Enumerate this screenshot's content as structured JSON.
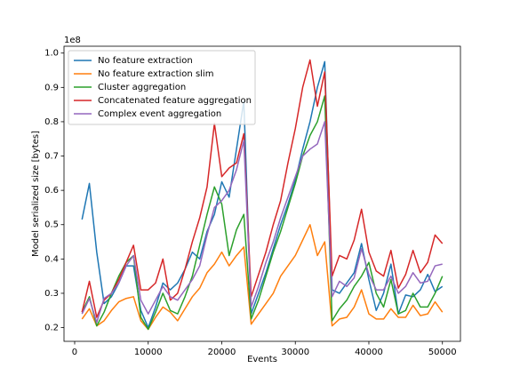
{
  "chart_data": {
    "type": "line",
    "xlabel": "Events",
    "ylabel": "Model serialized size [bytes]",
    "y_offset_label": "1e8",
    "x": [
      1000,
      2000,
      3000,
      4000,
      5000,
      6000,
      7000,
      8000,
      9000,
      10000,
      11000,
      12000,
      13000,
      14000,
      15000,
      16000,
      17000,
      18000,
      19000,
      20000,
      21000,
      22000,
      23000,
      24000,
      25000,
      26000,
      27000,
      28000,
      29000,
      30000,
      31000,
      32000,
      33000,
      34000,
      35000,
      36000,
      37000,
      38000,
      39000,
      40000,
      41000,
      42000,
      43000,
      44000,
      45000,
      46000,
      47000,
      48000,
      49000,
      50000
    ],
    "series": [
      {
        "name": "No feature extraction",
        "color": "#1f77b4",
        "values": [
          0.515,
          0.62,
          0.42,
          0.27,
          0.29,
          0.33,
          0.38,
          0.38,
          0.25,
          0.2,
          0.26,
          0.33,
          0.31,
          0.33,
          0.37,
          0.42,
          0.4,
          0.48,
          0.53,
          0.625,
          0.58,
          0.72,
          0.86,
          0.24,
          0.3,
          0.36,
          0.43,
          0.5,
          0.56,
          0.63,
          0.72,
          0.8,
          0.9,
          0.975,
          0.31,
          0.3,
          0.33,
          0.36,
          0.445,
          0.34,
          0.25,
          0.3,
          0.385,
          0.24,
          0.295,
          0.29,
          0.31,
          0.355,
          0.305,
          0.32
        ]
      },
      {
        "name": "No feature extraction slim",
        "color": "#ff7f0e",
        "values": [
          0.225,
          0.255,
          0.205,
          0.22,
          0.25,
          0.275,
          0.285,
          0.29,
          0.22,
          0.195,
          0.23,
          0.26,
          0.245,
          0.22,
          0.255,
          0.29,
          0.315,
          0.36,
          0.385,
          0.42,
          0.38,
          0.41,
          0.435,
          0.21,
          0.24,
          0.27,
          0.3,
          0.35,
          0.38,
          0.41,
          0.455,
          0.5,
          0.41,
          0.45,
          0.205,
          0.225,
          0.23,
          0.26,
          0.31,
          0.24,
          0.225,
          0.225,
          0.255,
          0.23,
          0.23,
          0.265,
          0.235,
          0.24,
          0.275,
          0.245
        ]
      },
      {
        "name": "Cluster aggregation",
        "color": "#2ca02c",
        "values": [
          0.245,
          0.29,
          0.205,
          0.245,
          0.3,
          0.35,
          0.39,
          0.41,
          0.23,
          0.195,
          0.245,
          0.3,
          0.25,
          0.24,
          0.29,
          0.35,
          0.44,
          0.53,
          0.61,
          0.56,
          0.41,
          0.485,
          0.53,
          0.225,
          0.28,
          0.35,
          0.42,
          0.48,
          0.55,
          0.62,
          0.7,
          0.76,
          0.8,
          0.875,
          0.22,
          0.255,
          0.28,
          0.32,
          0.35,
          0.39,
          0.3,
          0.26,
          0.34,
          0.24,
          0.25,
          0.3,
          0.26,
          0.26,
          0.3,
          0.35
        ]
      },
      {
        "name": "Concatenated feature aggregation",
        "color": "#d62728",
        "values": [
          0.245,
          0.335,
          0.23,
          0.28,
          0.3,
          0.34,
          0.39,
          0.44,
          0.31,
          0.31,
          0.33,
          0.4,
          0.28,
          0.3,
          0.37,
          0.45,
          0.52,
          0.61,
          0.795,
          0.64,
          0.665,
          0.68,
          0.765,
          0.29,
          0.355,
          0.42,
          0.5,
          0.57,
          0.68,
          0.78,
          0.9,
          0.98,
          0.845,
          0.945,
          0.35,
          0.41,
          0.4,
          0.455,
          0.545,
          0.42,
          0.365,
          0.35,
          0.425,
          0.315,
          0.355,
          0.425,
          0.36,
          0.39,
          0.47,
          0.445
        ]
      },
      {
        "name": "Complex event aggregation",
        "color": "#9467bd",
        "values": [
          0.24,
          0.285,
          0.215,
          0.285,
          0.3,
          0.33,
          0.38,
          0.41,
          0.28,
          0.24,
          0.28,
          0.32,
          0.29,
          0.28,
          0.31,
          0.34,
          0.38,
          0.47,
          0.55,
          0.57,
          0.6,
          0.66,
          0.745,
          0.26,
          0.32,
          0.39,
          0.45,
          0.52,
          0.58,
          0.64,
          0.7,
          0.72,
          0.735,
          0.8,
          0.29,
          0.335,
          0.32,
          0.345,
          0.43,
          0.355,
          0.31,
          0.31,
          0.35,
          0.3,
          0.32,
          0.36,
          0.33,
          0.335,
          0.38,
          0.385
        ]
      }
    ],
    "xlim": [
      -1450,
      52450
    ],
    "xticks": [
      0,
      10000,
      20000,
      30000,
      40000,
      50000
    ],
    "ylim": [
      0.16,
      1.02
    ],
    "yticks": [
      0.2,
      0.3,
      0.4,
      0.5,
      0.6,
      0.7,
      0.8,
      0.9,
      {
        "value": 1,
        "label": "1.0"
      }
    ],
    "legend": "upper left",
    "grid": false
  }
}
